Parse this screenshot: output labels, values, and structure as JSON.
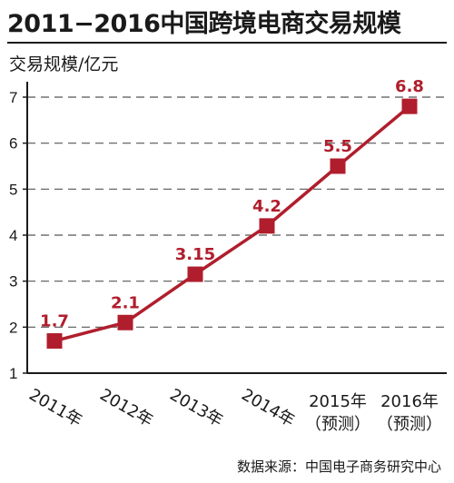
{
  "title": "2011−2016中国跨境电商交易规模",
  "ylabel": "交易规模/亿元",
  "source": "数据来源：中国电子商务研究中心",
  "chart_data": {
    "type": "line",
    "title": "2011−2016中国跨境电商交易规模",
    "ylabel": "交易规模/亿元",
    "xlabel": "",
    "categories": [
      "2011年",
      "2012年",
      "2013年",
      "2014年",
      "2015年（预测）",
      "2016年（预测）"
    ],
    "values": [
      1.7,
      2.1,
      3.15,
      4.2,
      5.5,
      6.8
    ],
    "data_labels": [
      "1.7",
      "2.1",
      "3.15",
      "4.2",
      "5.5",
      "6.8"
    ],
    "ylim": [
      1,
      7
    ],
    "yticks": [
      "1",
      "2",
      "3",
      "4",
      "5",
      "6",
      "7"
    ],
    "grid": true,
    "legend": "none",
    "colors": {
      "series": "#b01e2d",
      "grid": "#555555",
      "text": "#1a1a1a"
    }
  }
}
